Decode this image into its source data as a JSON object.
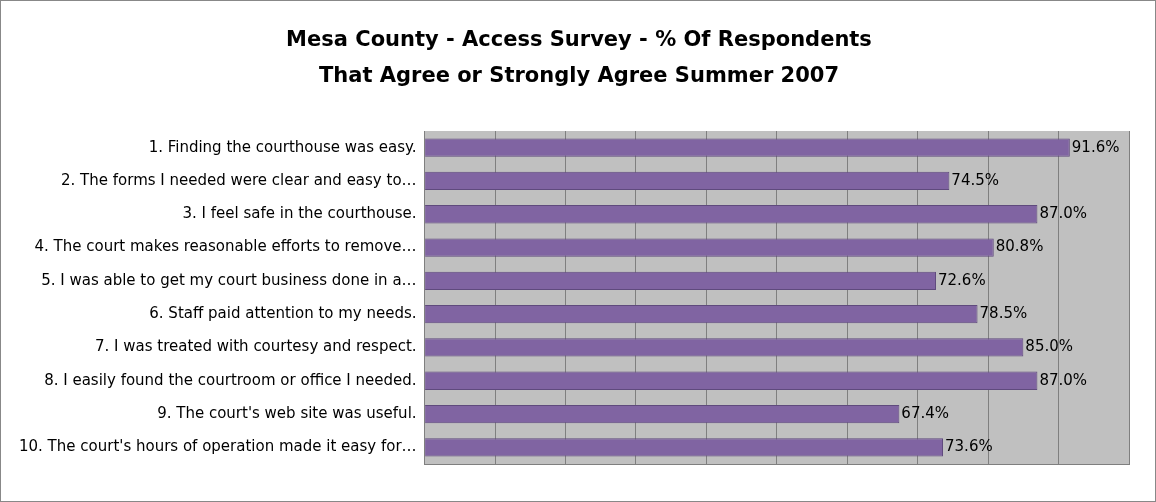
{
  "chart_data": {
    "type": "bar",
    "orientation": "horizontal",
    "title": "Mesa County - Access Survey - % Of Respondents That Agree or Strongly Agree Summer 2007",
    "categories": [
      "1. Finding the courthouse was easy.",
      "2. The forms I needed were clear and easy to…",
      "3. I feel safe in the courthouse.",
      "4. The court makes reasonable efforts to remove…",
      "5. I was able to get my court business done in a…",
      "6. Staff paid attention to my needs.",
      "7. I was treated with courtesy and respect.",
      "8. I easily found the courtroom or office I needed.",
      "9. The court's web site was useful.",
      "10. The court's hours of operation made it easy for…"
    ],
    "values": [
      91.6,
      74.5,
      87.0,
      80.8,
      72.6,
      78.5,
      85.0,
      87.0,
      67.4,
      73.6
    ],
    "value_labels": [
      "91.6%",
      "74.5%",
      "87.0%",
      "80.8%",
      "72.6%",
      "78.5%",
      "85.0%",
      "87.0%",
      "67.4%",
      "73.6%"
    ],
    "color": "#8064a2",
    "xlim": [
      0,
      100
    ],
    "xticks": [
      {
        "value": 0,
        "label": null
      },
      {
        "value": 10,
        "label": null
      },
      {
        "value": 20,
        "label": null
      },
      {
        "value": 30,
        "label": null
      },
      {
        "value": 40,
        "label": null
      },
      {
        "value": 50,
        "label": null
      },
      {
        "value": 60,
        "label": null
      },
      {
        "value": 70,
        "label": null
      },
      {
        "value": 80,
        "label": null
      },
      {
        "value": 90,
        "label": null
      },
      {
        "value": 100,
        "label": null
      }
    ],
    "tick_labels": "y",
    "grid": "x",
    "legend": false
  }
}
